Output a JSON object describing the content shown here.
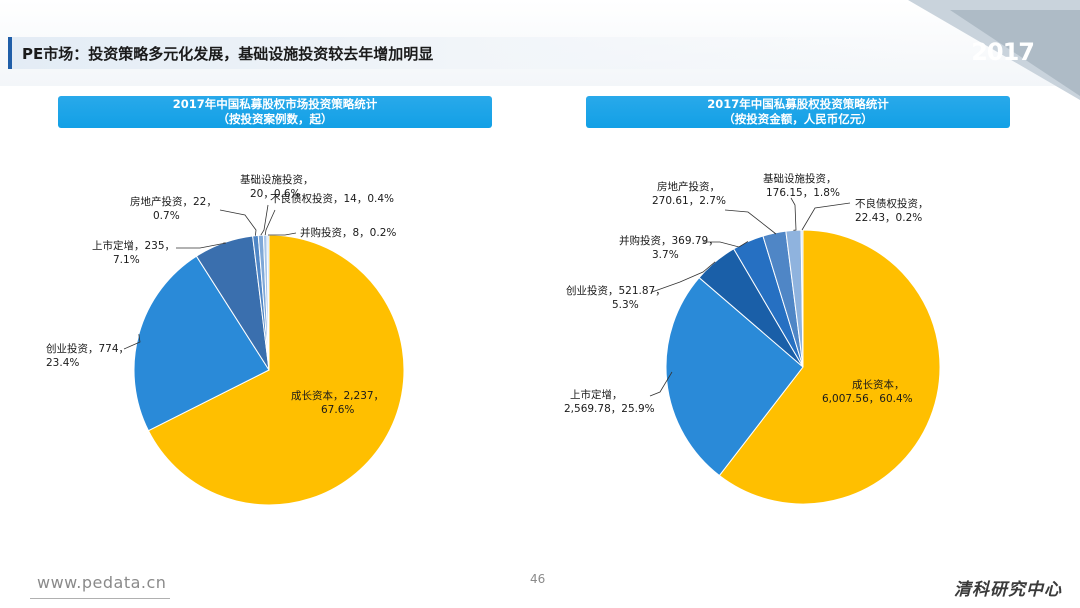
{
  "slide": {
    "title": "PE市场：投资策略多元化发展，基础设施投资较去年增加明显",
    "year_badge": "2017",
    "footer_url": "www.pedata.cn",
    "page_number": "46",
    "brand": "清科研究中心"
  },
  "colors": {
    "header": "#12a0e6",
    "accent": "#1f5ea8",
    "growth": "#ffbf00"
  },
  "chart_data": [
    {
      "type": "pie",
      "title_line1": "2017年中国私募股权市场投资策略统计",
      "title_line2": "（按投资案例数，起）",
      "slices": [
        {
          "name": "成长资本",
          "value": 2237,
          "value_text": "2,237",
          "pct": "67.6%",
          "color": "#ffbf00"
        },
        {
          "name": "创业投资",
          "value": 774,
          "value_text": "774",
          "pct": "23.4%",
          "color": "#2a8ad8"
        },
        {
          "name": "上市定增",
          "value": 235,
          "value_text": "235",
          "pct": "7.1%",
          "color": "#3a6fae"
        },
        {
          "name": "房地产投资",
          "value": 22,
          "value_text": "22",
          "pct": "0.7%",
          "color": "#4f86c6"
        },
        {
          "name": "基础设施投资",
          "value": 20,
          "value_text": "20",
          "pct": "0.6%",
          "color": "#7fa8d8"
        },
        {
          "name": "不良债权投资",
          "value": 14,
          "value_text": "14",
          "pct": "0.4%",
          "color": "#a9c6e8"
        },
        {
          "name": "并购投资",
          "value": 8,
          "value_text": "8",
          "pct": "0.2%",
          "color": "#c9dcf0"
        }
      ],
      "labels": [
        {
          "line1": "成长资本，2,237，",
          "line2": "67.6%"
        },
        {
          "line1": "创业投资，774，",
          "line2": "23.4%"
        },
        {
          "line1": "上市定增，235，",
          "line2": "7.1%"
        },
        {
          "line1": "房地产投资，22，",
          "line2": "0.7%"
        },
        {
          "line1": "基础设施投资，",
          "line2": "20，0.6%"
        },
        {
          "line1": "不良债权投资，14，0.4%",
          "line2": ""
        },
        {
          "line1": "并购投资，8，0.2%",
          "line2": ""
        }
      ]
    },
    {
      "type": "pie",
      "title_line1": "2017年中国私募股权投资策略统计",
      "title_line2": "（按投资金额，人民币亿元）",
      "slices": [
        {
          "name": "成长资本",
          "value": 6007.56,
          "value_text": "6,007.56",
          "pct": "60.4%",
          "color": "#ffbf00"
        },
        {
          "name": "上市定增",
          "value": 2569.78,
          "value_text": "2,569.78",
          "pct": "25.9%",
          "color": "#2a8ad8"
        },
        {
          "name": "创业投资",
          "value": 521.87,
          "value_text": "521.87",
          "pct": "5.3%",
          "color": "#1a5fa8"
        },
        {
          "name": "并购投资",
          "value": 369.79,
          "value_text": "369.79",
          "pct": "3.7%",
          "color": "#2670c2"
        },
        {
          "name": "房地产投资",
          "value": 270.61,
          "value_text": "270.61",
          "pct": "2.7%",
          "color": "#4f86c6"
        },
        {
          "name": "基础设施投资",
          "value": 176.15,
          "value_text": "176.15",
          "pct": "1.8%",
          "color": "#8fb3de"
        },
        {
          "name": "不良债权投资",
          "value": 22.43,
          "value_text": "22.43",
          "pct": "0.2%",
          "color": "#c9dcf0"
        }
      ],
      "labels": [
        {
          "line1": "成长资本，",
          "line2": "6,007.56，60.4%"
        },
        {
          "line1": "上市定增，",
          "line2": "2,569.78，25.9%"
        },
        {
          "line1": "创业投资，521.87，",
          "line2": "5.3%"
        },
        {
          "line1": "并购投资，369.79，",
          "line2": "3.7%"
        },
        {
          "line1": "房地产投资，",
          "line2": "270.61，2.7%"
        },
        {
          "line1": "基础设施投资，",
          "line2": "176.15，1.8%"
        },
        {
          "line1": "不良债权投资，",
          "line2": "22.43，0.2%"
        }
      ]
    }
  ]
}
